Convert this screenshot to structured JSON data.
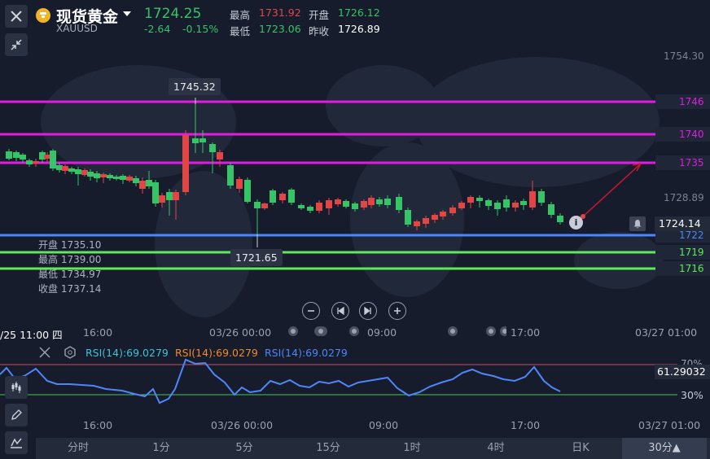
{
  "header": {
    "title": "现货黄金",
    "symbol": "XAUUSD",
    "price": "1724.25",
    "change": "-2.64",
    "change_pct": "-0.15%",
    "high_label": "最高",
    "high_value": "1731.92",
    "open_label": "开盘",
    "open_value": "1726.12",
    "low_label": "最低",
    "low_value": "1723.06",
    "prev_close_label": "昨收",
    "prev_close_value": "1726.89"
  },
  "price_axis": {
    "top_label": "1754.30",
    "mid_label": "1728.89"
  },
  "current_price_tag": "1724.14",
  "levels": [
    {
      "label": "1746",
      "color": "#e21be2",
      "value": 1746
    },
    {
      "label": "1740",
      "color": "#e21be2",
      "value": 1740
    },
    {
      "label": "1735",
      "color": "#e21be2",
      "value": 1735
    },
    {
      "label": "1722",
      "color": "#4f86f7",
      "value": 1722
    },
    {
      "label": "1719",
      "color": "#5ee85a",
      "value": 1719
    },
    {
      "label": "1716",
      "color": "#5ee85a",
      "value": 1716
    }
  ],
  "callouts": {
    "high": "1745.32",
    "low": "1721.65"
  },
  "ohlc_box": {
    "open": "开盘 1735.10",
    "high": "最高 1739.00",
    "low": "最低 1734.97",
    "close": "收盘 1737.14"
  },
  "time_axis": {
    "crosshair": "/25 11:00 四",
    "t1": "16:00",
    "t2": "03/26 00:00",
    "t3": "09:00",
    "t4": "17:00",
    "t5": "03/27 01:00"
  },
  "rsi": {
    "label1": "RSI(14):69.0279",
    "label2": "RSI(14):69.0279",
    "label3": "RSI(14):69.0279",
    "value_tag": "61.29032",
    "level_70": "70%",
    "level_30": "30%"
  },
  "rsi_time_axis": {
    "t1": "16:00",
    "t2": "03/26 00:00",
    "t3": "09:00",
    "t4": "17:00",
    "t5": "03/27 01:00"
  },
  "tabs": [
    {
      "label": "分时"
    },
    {
      "label": "1分"
    },
    {
      "label": "5分"
    },
    {
      "label": "15分"
    },
    {
      "label": "1时"
    },
    {
      "label": "4时"
    },
    {
      "label": "日K"
    },
    {
      "label": "30分▲"
    }
  ],
  "colors": {
    "up": "#e04646",
    "down": "#35c466",
    "background": "#161c2c"
  },
  "icons": {
    "close": "close-icon",
    "shrink": "shrink-icon",
    "bell": "bell-icon",
    "info": "info-icon"
  }
}
